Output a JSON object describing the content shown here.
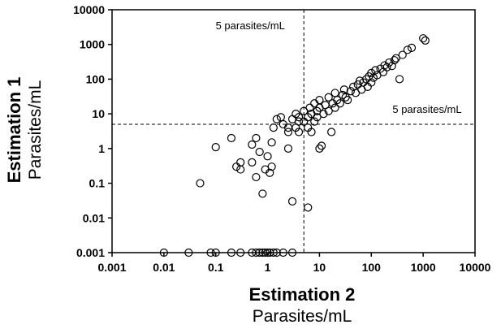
{
  "chart_data": {
    "type": "scatter",
    "title": "",
    "xlabel": "Estimation 2",
    "xlabel_unit": "Parasites/mL",
    "ylabel": "Estimation 1",
    "ylabel_unit": "Parasites/mL",
    "xscale": "log",
    "yscale": "log",
    "xlim": [
      0.001,
      10000
    ],
    "ylim": [
      0.001,
      10000
    ],
    "x_ticks": [
      0.001,
      0.01,
      0.1,
      1,
      10,
      100,
      1000,
      10000
    ],
    "x_tick_labels": [
      "0.001",
      "0.01",
      "0.1",
      "1",
      "10",
      "100",
      "1000",
      "10000"
    ],
    "y_ticks": [
      0.001,
      0.01,
      0.1,
      1,
      10,
      100,
      1000,
      10000
    ],
    "y_tick_labels": [
      "0.001",
      "0.01",
      "0.1",
      "1",
      "10",
      "100",
      "1000",
      "10000"
    ],
    "grid": false,
    "marker": "open-circle",
    "reference_lines": [
      {
        "orientation": "vertical",
        "value": 5,
        "label": "5 parasites/mL"
      },
      {
        "orientation": "horizontal",
        "value": 5,
        "label": "5 parasites/mL"
      }
    ],
    "points": [
      [
        0.01,
        0.001
      ],
      [
        0.03,
        0.001
      ],
      [
        0.08,
        0.001
      ],
      [
        0.1,
        0.001
      ],
      [
        0.2,
        0.001
      ],
      [
        0.3,
        0.001
      ],
      [
        0.5,
        0.001
      ],
      [
        0.6,
        0.001
      ],
      [
        0.7,
        0.001
      ],
      [
        0.8,
        0.001
      ],
      [
        0.9,
        0.001
      ],
      [
        1,
        0.001
      ],
      [
        1.1,
        0.001
      ],
      [
        1.3,
        0.001
      ],
      [
        1.5,
        0.001
      ],
      [
        2,
        0.001
      ],
      [
        3,
        0.001
      ],
      [
        0.05,
        0.1
      ],
      [
        0.1,
        1.1
      ],
      [
        0.2,
        2
      ],
      [
        0.25,
        0.3
      ],
      [
        0.3,
        0.4
      ],
      [
        0.3,
        0.25
      ],
      [
        0.5,
        0.4
      ],
      [
        0.5,
        1.3
      ],
      [
        0.6,
        0.15
      ],
      [
        0.6,
        2
      ],
      [
        0.7,
        0.8
      ],
      [
        0.8,
        0.05
      ],
      [
        0.9,
        0.25
      ],
      [
        1,
        0.6
      ],
      [
        1.1,
        0.2
      ],
      [
        1.2,
        0.3
      ],
      [
        1.2,
        1.5
      ],
      [
        1.3,
        4
      ],
      [
        1.5,
        7
      ],
      [
        1.8,
        8
      ],
      [
        2,
        5
      ],
      [
        2.5,
        1
      ],
      [
        2.5,
        3
      ],
      [
        2.5,
        4
      ],
      [
        3,
        0.03
      ],
      [
        3,
        7
      ],
      [
        3.5,
        10
      ],
      [
        3.5,
        4
      ],
      [
        4,
        6
      ],
      [
        4,
        3
      ],
      [
        4,
        8
      ],
      [
        5,
        6
      ],
      [
        5,
        12
      ],
      [
        6,
        0.02
      ],
      [
        6,
        4
      ],
      [
        6,
        8
      ],
      [
        6.5,
        15
      ],
      [
        7,
        3
      ],
      [
        7,
        10
      ],
      [
        8,
        6
      ],
      [
        8,
        20
      ],
      [
        9,
        8
      ],
      [
        9,
        12
      ],
      [
        10,
        1
      ],
      [
        11,
        1.2
      ],
      [
        10,
        15
      ],
      [
        10,
        25
      ],
      [
        12,
        10
      ],
      [
        13,
        18
      ],
      [
        15,
        12
      ],
      [
        15,
        30
      ],
      [
        17,
        3
      ],
      [
        18,
        20
      ],
      [
        20,
        15
      ],
      [
        20,
        40
      ],
      [
        22,
        25
      ],
      [
        25,
        20
      ],
      [
        28,
        35
      ],
      [
        30,
        50
      ],
      [
        32,
        30
      ],
      [
        35,
        25
      ],
      [
        40,
        45
      ],
      [
        45,
        60
      ],
      [
        50,
        40
      ],
      [
        55,
        70
      ],
      [
        60,
        90
      ],
      [
        65,
        50
      ],
      [
        70,
        80
      ],
      [
        80,
        100
      ],
      [
        85,
        60
      ],
      [
        90,
        120
      ],
      [
        100,
        80
      ],
      [
        100,
        150
      ],
      [
        110,
        110
      ],
      [
        120,
        180
      ],
      [
        130,
        130
      ],
      [
        150,
        200
      ],
      [
        170,
        160
      ],
      [
        180,
        250
      ],
      [
        200,
        220
      ],
      [
        220,
        300
      ],
      [
        250,
        240
      ],
      [
        280,
        350
      ],
      [
        300,
        400
      ],
      [
        350,
        100
      ],
      [
        400,
        500
      ],
      [
        500,
        700
      ],
      [
        600,
        800
      ],
      [
        1000,
        1500
      ],
      [
        1100,
        1300
      ]
    ]
  }
}
